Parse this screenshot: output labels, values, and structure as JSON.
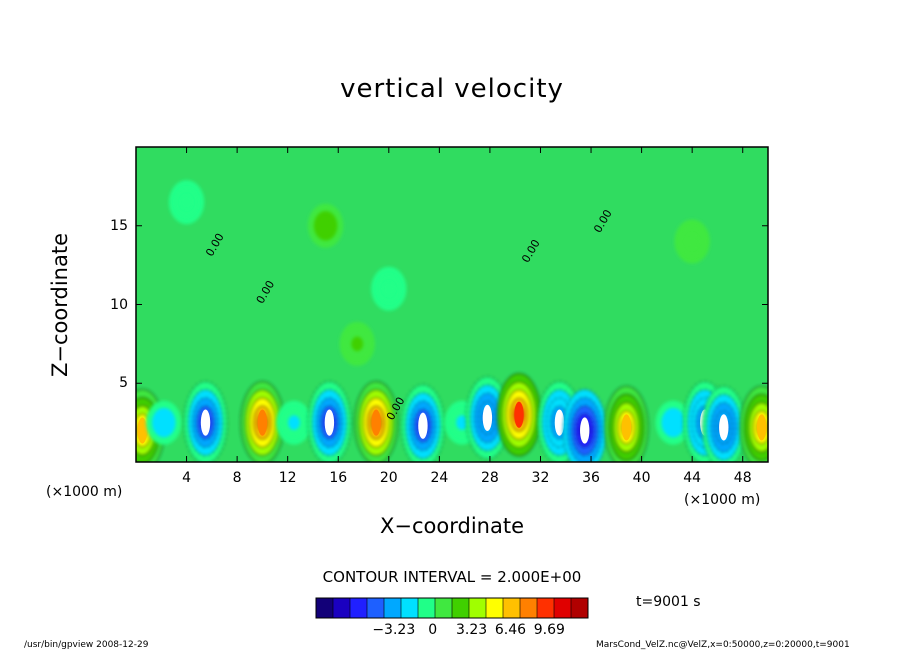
{
  "chart_data": {
    "type": "heatmap",
    "title": "vertical velocity",
    "xlabel": "X−coordinate",
    "ylabel": "Z−coordinate",
    "x_unit": "(×1000 m)",
    "xlim": [
      0,
      50
    ],
    "ylim": [
      0,
      20
    ],
    "x_ticks": [
      "4",
      "8",
      "12",
      "16",
      "20",
      "24",
      "28",
      "32",
      "36",
      "40",
      "44",
      "48"
    ],
    "x_tick_values": [
      4,
      8,
      12,
      16,
      20,
      24,
      28,
      32,
      36,
      40,
      44,
      48
    ],
    "y_ticks": [
      "5",
      "10",
      "15"
    ],
    "y_tick_values": [
      5,
      10,
      15
    ],
    "contour_interval_text": "CONTOUR INTERVAL = 2.000E+00",
    "contour_labels": [
      {
        "x": 6,
        "y": 13,
        "text": "0.00"
      },
      {
        "x": 10,
        "y": 10,
        "text": "0.00"
      },
      {
        "x": 20.3,
        "y": 2.6,
        "text": "0.00"
      },
      {
        "x": 31,
        "y": 12.6,
        "text": "0.00"
      },
      {
        "x": 36.7,
        "y": 14.5,
        "text": "0.00"
      }
    ],
    "cells": [
      {
        "x": 0.5,
        "y": 2.0,
        "value": 6.0
      },
      {
        "x": 2.2,
        "y": 2.5,
        "value": -2.0
      },
      {
        "x": 5.5,
        "y": 2.5,
        "value": -6.0
      },
      {
        "x": 10.0,
        "y": 2.5,
        "value": 8.0
      },
      {
        "x": 12.5,
        "y": 2.5,
        "value": -1.5
      },
      {
        "x": 15.3,
        "y": 2.5,
        "value": -6.0
      },
      {
        "x": 19.0,
        "y": 2.5,
        "value": 8.0
      },
      {
        "x": 22.7,
        "y": 2.3,
        "value": -5.5
      },
      {
        "x": 25.8,
        "y": 2.5,
        "value": -1.5
      },
      {
        "x": 27.8,
        "y": 2.8,
        "value": -5.0
      },
      {
        "x": 30.3,
        "y": 3.0,
        "value": 9.0
      },
      {
        "x": 33.5,
        "y": 2.5,
        "value": -3.5
      },
      {
        "x": 35.5,
        "y": 2.0,
        "value": -7.0
      },
      {
        "x": 38.8,
        "y": 2.2,
        "value": 6.5
      },
      {
        "x": 42.5,
        "y": 2.5,
        "value": -2.5
      },
      {
        "x": 45.0,
        "y": 2.5,
        "value": -4.0
      },
      {
        "x": 46.5,
        "y": 2.2,
        "value": -5.0
      },
      {
        "x": 49.5,
        "y": 2.2,
        "value": 6.0
      },
      {
        "x": 15.0,
        "y": 15.0,
        "value": 2.5
      },
      {
        "x": 17.5,
        "y": 7.5,
        "value": 2.0
      },
      {
        "x": 4.0,
        "y": 16.5,
        "value": -0.8
      },
      {
        "x": 20.0,
        "y": 11.0,
        "value": -0.8
      },
      {
        "x": 44.0,
        "y": 14.0,
        "value": 0.8
      }
    ],
    "colorbar": {
      "ticks": [
        "−3.23",
        "0",
        "3.23",
        "6.46",
        "9.69"
      ],
      "tick_values": [
        -3.23,
        0,
        3.23,
        6.46,
        9.69
      ],
      "min": -9.69,
      "max": 12.9,
      "colors": [
        "#120078",
        "#1a00c0",
        "#2020ff",
        "#1e60ff",
        "#00a8ff",
        "#00e0ff",
        "#20ff88",
        "#40e840",
        "#40d000",
        "#a0ff00",
        "#ffff00",
        "#ffc000",
        "#ff8000",
        "#ff3000",
        "#e00000",
        "#b00000"
      ]
    }
  },
  "time_label": "t=9001 s",
  "footer_left": "/usr/bin/gpview   2008-12-29",
  "footer_right": "MarsCond_VelZ.nc@VelZ,x=0:50000,z=0:20000,t=9001"
}
